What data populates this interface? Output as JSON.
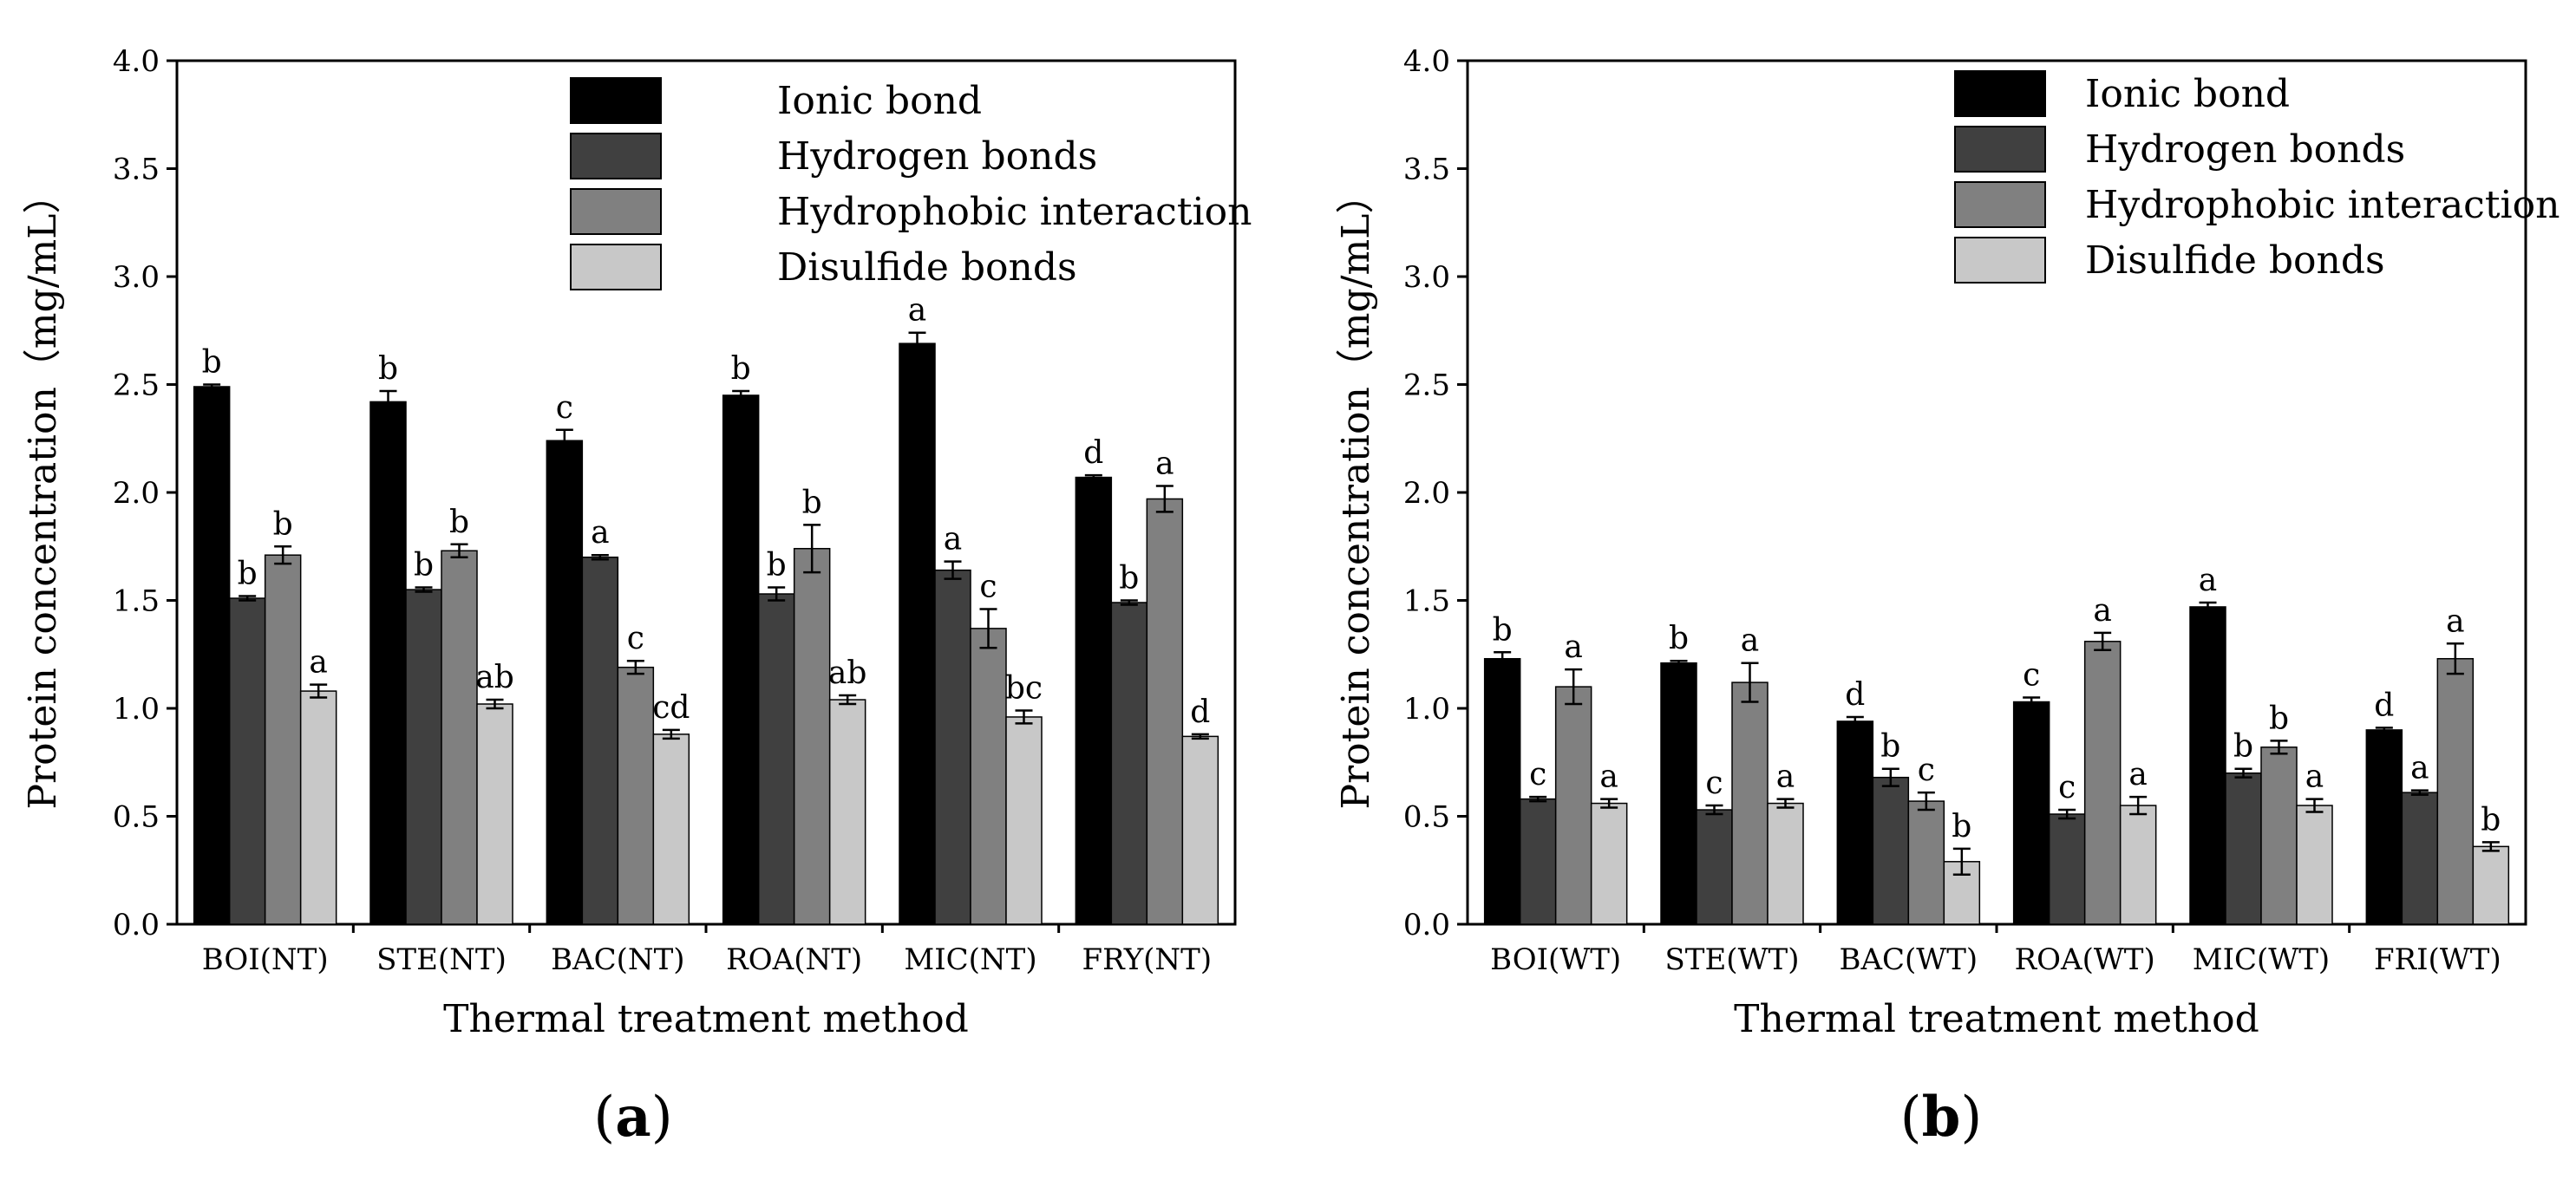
{
  "chart_data": [
    {
      "type": "bar",
      "panel_label": "a",
      "title": "",
      "xlabel": "Thermal treatment method",
      "ylabel": "Protein concentration（mg/mL）",
      "ylim": [
        0,
        4.0
      ],
      "yticks": [
        "0.0",
        "0.5",
        "1.0",
        "1.5",
        "2.0",
        "2.5",
        "3.0",
        "3.5",
        "4.0"
      ],
      "grid": false,
      "legend_position": "top-right",
      "categories": [
        "BOI(NT)",
        "STE(NT)",
        "BAC(NT)",
        "ROA(NT)",
        "MIC(NT)",
        "FRY(NT)"
      ],
      "series": [
        {
          "name": "Ionic bond",
          "color": "#000000",
          "values": [
            2.49,
            2.42,
            2.24,
            2.45,
            2.69,
            2.07
          ],
          "errors": [
            0.01,
            0.05,
            0.05,
            0.02,
            0.05,
            0.01
          ],
          "letters": [
            "b",
            "b",
            "c",
            "b",
            "a",
            "d"
          ]
        },
        {
          "name": "Hydrogen bonds",
          "color": "#404040",
          "values": [
            1.51,
            1.55,
            1.7,
            1.53,
            1.64,
            1.49
          ],
          "errors": [
            0.01,
            0.01,
            0.01,
            0.03,
            0.04,
            0.01
          ],
          "letters": [
            "b",
            "b",
            "a",
            "b",
            "a",
            "b"
          ]
        },
        {
          "name": "Hydrophobic interaction",
          "color": "#808080",
          "values": [
            1.71,
            1.73,
            1.19,
            1.74,
            1.37,
            1.97
          ],
          "errors": [
            0.04,
            0.03,
            0.03,
            0.11,
            0.09,
            0.06
          ],
          "letters": [
            "b",
            "b",
            "c",
            "b",
            "c",
            "a"
          ]
        },
        {
          "name": "Disulfide bonds",
          "color": "#c8c8c8",
          "values": [
            1.08,
            1.02,
            0.88,
            1.04,
            0.96,
            0.87
          ],
          "errors": [
            0.03,
            0.02,
            0.02,
            0.02,
            0.03,
            0.01
          ],
          "letters": [
            "a",
            "ab",
            "cd",
            "ab",
            "bc",
            "d"
          ]
        }
      ]
    },
    {
      "type": "bar",
      "panel_label": "b",
      "title": "",
      "xlabel": "Thermal treatment method",
      "ylabel": "Protein concentration（mg/mL）",
      "ylim": [
        0,
        4.0
      ],
      "yticks": [
        "0.0",
        "0.5",
        "1.0",
        "1.5",
        "2.0",
        "2.5",
        "3.0",
        "3.5",
        "4.0"
      ],
      "grid": false,
      "legend_position": "top-right",
      "categories": [
        "BOI(WT)",
        "STE(WT)",
        "BAC(WT)",
        "ROA(WT)",
        "MIC(WT)",
        "FRI(WT)"
      ],
      "series": [
        {
          "name": "Ionic bond",
          "color": "#000000",
          "values": [
            1.23,
            1.21,
            0.94,
            1.03,
            1.47,
            0.9
          ],
          "errors": [
            0.03,
            0.01,
            0.02,
            0.02,
            0.02,
            0.01
          ],
          "letters": [
            "b",
            "b",
            "d",
            "c",
            "a",
            "d"
          ]
        },
        {
          "name": "Hydrogen bonds",
          "color": "#404040",
          "values": [
            0.58,
            0.53,
            0.68,
            0.51,
            0.7,
            0.61
          ],
          "errors": [
            0.01,
            0.02,
            0.04,
            0.02,
            0.02,
            0.01
          ],
          "letters": [
            "c",
            "c",
            "b",
            "c",
            "b",
            "a"
          ]
        },
        {
          "name": "Hydrophobic interaction",
          "color": "#808080",
          "values": [
            1.1,
            1.12,
            0.57,
            1.31,
            0.82,
            1.23
          ],
          "errors": [
            0.08,
            0.09,
            0.04,
            0.04,
            0.03,
            0.07
          ],
          "letters": [
            "a",
            "a",
            "c",
            "a",
            "b",
            "a"
          ]
        },
        {
          "name": "Disulfide bonds",
          "color": "#c8c8c8",
          "values": [
            0.56,
            0.56,
            0.29,
            0.55,
            0.55,
            0.36
          ],
          "errors": [
            0.02,
            0.02,
            0.06,
            0.04,
            0.03,
            0.02
          ],
          "letters": [
            "a",
            "a",
            "b",
            "a",
            "a",
            "b"
          ]
        }
      ]
    }
  ]
}
